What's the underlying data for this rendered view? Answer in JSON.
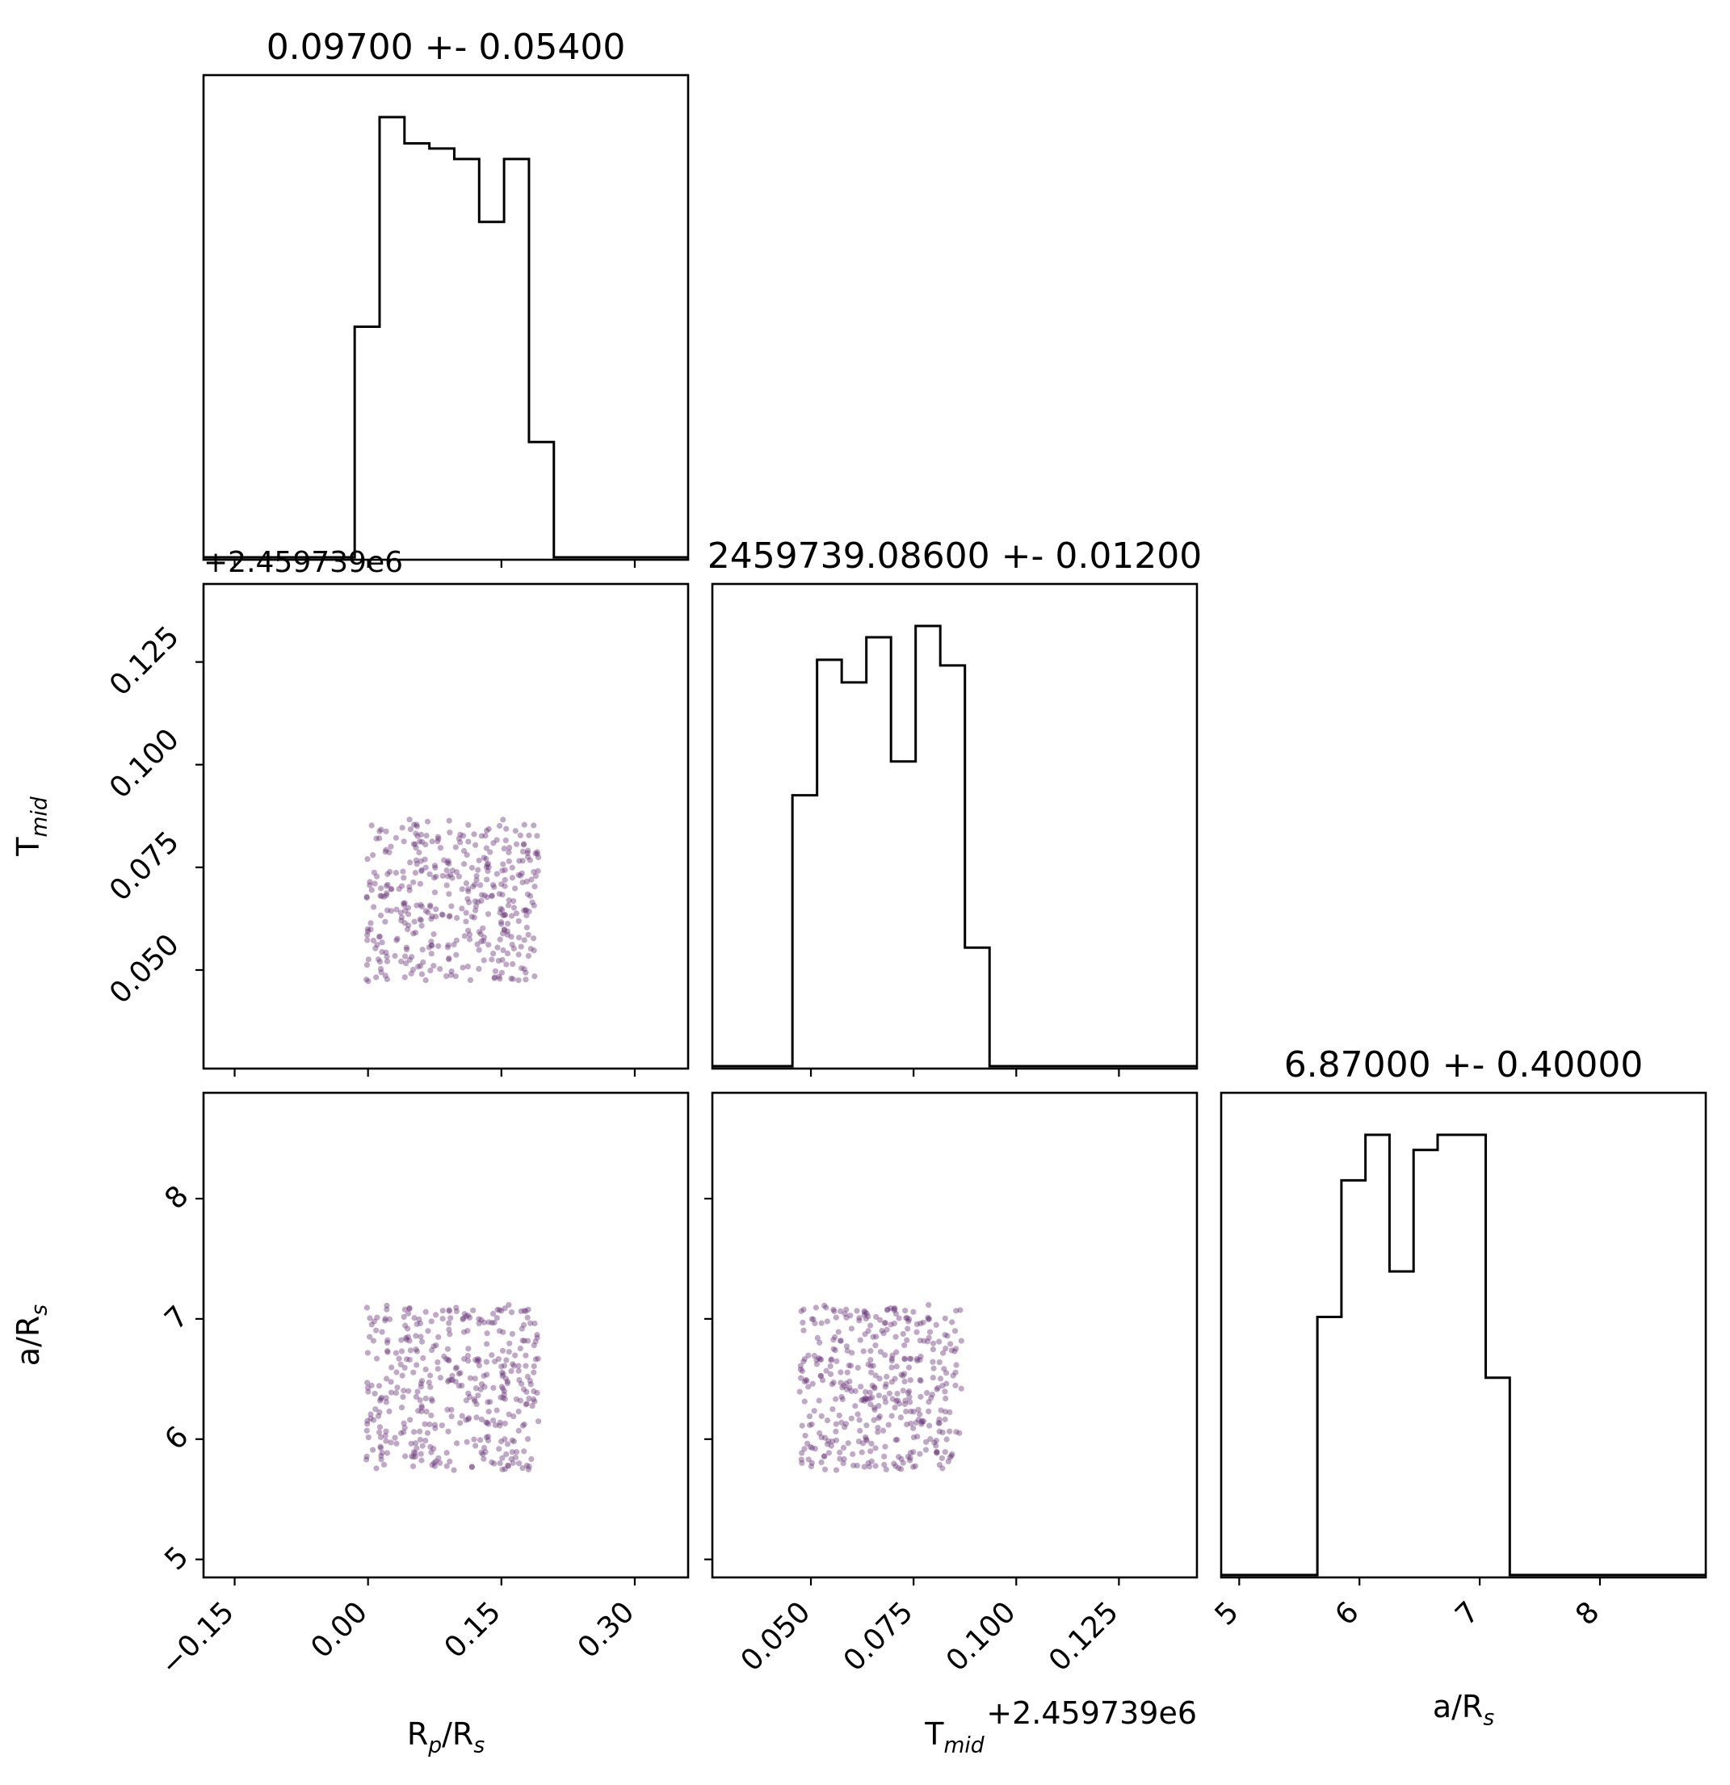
{
  "chart_data": {
    "type": "corner",
    "colors": {
      "points": "#663377",
      "points_opacity": 0.42,
      "histogram": "#000000",
      "axes": "#000000"
    },
    "grid": false,
    "parameters": [
      {
        "key": "rp",
        "label": "R_p/R_s",
        "label_main": "R",
        "label_sub1": "p",
        "label_mid": "/R",
        "label_sub2": "s",
        "range": [
          -0.185,
          0.36
        ],
        "ticks": [
          -0.15,
          0.0,
          0.15,
          0.3
        ],
        "tick_labels": [
          "−0.15",
          "0.00",
          "0.15",
          "0.30"
        ],
        "offset_text": ""
      },
      {
        "key": "tmid",
        "label": "T_mid",
        "label_main": "T",
        "label_sub1": "mid",
        "label_mid": "",
        "label_sub2": "",
        "range": [
          0.026,
          0.144
        ],
        "ticks": [
          0.05,
          0.075,
          0.1,
          0.125
        ],
        "tick_labels": [
          "0.050",
          "0.075",
          "0.100",
          "0.125"
        ],
        "offset_text": "+2.459739e6"
      },
      {
        "key": "ars",
        "label": "a/R_s",
        "label_main": "a/R",
        "label_sub1": "s",
        "label_mid": "",
        "label_sub2": "",
        "range": [
          4.85,
          8.88
        ],
        "ticks": [
          5,
          6,
          7,
          8
        ],
        "tick_labels": [
          "5",
          "6",
          "7",
          "8"
        ],
        "offset_text": ""
      }
    ],
    "diagonal_titles": [
      "0.09700 +- 0.05400",
      "2459739.08600 +- 0.01200",
      "6.87000 +- 0.40000"
    ],
    "histograms": [
      {
        "param": "rp",
        "edges": [
          -0.015,
          0.013,
          0.041,
          0.069,
          0.097,
          0.125,
          0.153,
          0.181,
          0.209
        ],
        "counts": [
          22,
          42,
          39.5,
          39,
          38,
          32,
          38,
          11
        ]
      },
      {
        "param": "tmid",
        "edges": [
          0.0455,
          0.0515,
          0.0575,
          0.0635,
          0.0695,
          0.0755,
          0.0815,
          0.0875,
          0.0935
        ],
        "counts": [
          24,
          36,
          34,
          38,
          27,
          39,
          35.5,
          10.5
        ]
      },
      {
        "param": "ars",
        "edges": [
          5.65,
          5.85,
          6.05,
          6.25,
          6.45,
          6.65,
          6.85,
          7.05,
          7.25
        ],
        "counts": [
          17,
          26,
          29,
          20,
          28,
          29,
          29,
          13
        ]
      }
    ],
    "scatter_samples": {
      "count": 400,
      "rp_range": [
        -0.002,
        0.192
      ],
      "tmid_range": [
        0.0472,
        0.0868
      ],
      "ars_range": [
        5.74,
        7.12
      ]
    }
  }
}
